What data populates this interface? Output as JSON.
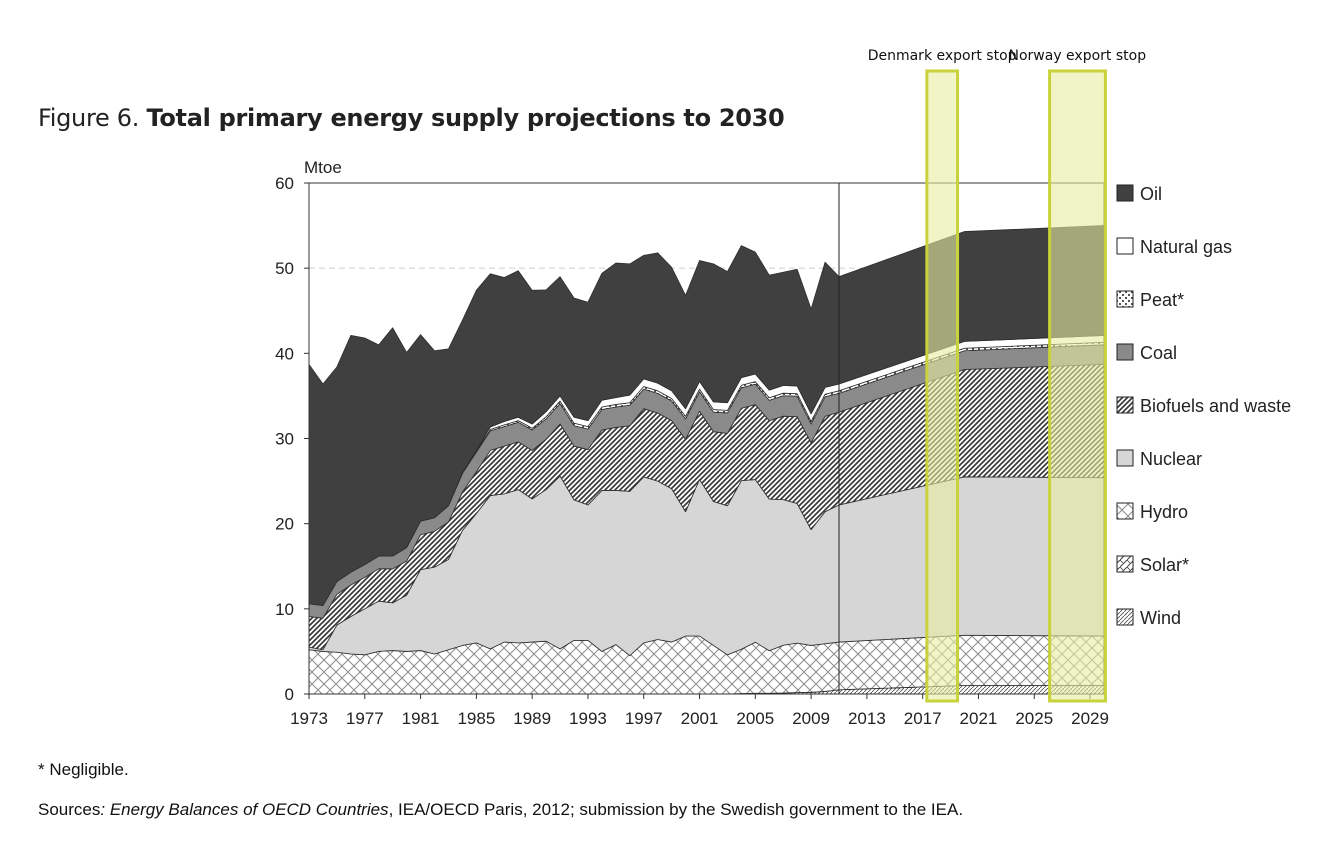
{
  "figure": {
    "label": "Figure 6.",
    "title": "Total primary energy supply projections to 2030"
  },
  "footnote": "* Negligible.",
  "sources": {
    "prefix": "Sources",
    "italic": ": Energy Balances of OECD Countries",
    "rest": ", IEA/OECD Paris, 2012; submission by the Swedish government to the IEA."
  },
  "annotations": [
    {
      "label": "Denmark export stop",
      "x_start": 2017.3,
      "x_end": 2019.5,
      "color": "#e8ee9e",
      "border": "#c8d23a"
    },
    {
      "label": "Norway export stop",
      "x_start": 2026.1,
      "x_end": 2030.1,
      "color": "#e8ee9e",
      "border": "#c8d23a"
    }
  ],
  "chart_data": {
    "type": "area",
    "stacked": true,
    "ylabel": "Mtoe",
    "ylim": [
      0,
      60
    ],
    "yticks": [
      0,
      10,
      20,
      30,
      40,
      50,
      60
    ],
    "xlim": [
      1973,
      2030
    ],
    "xticks": [
      1973,
      1977,
      1981,
      1985,
      1989,
      1993,
      1997,
      2001,
      2005,
      2009,
      2013,
      2017,
      2021,
      2025,
      2029
    ],
    "projection_start": 2011,
    "grid": "dashed at 50",
    "legend_position": "right",
    "x": [
      1973,
      1974,
      1975,
      1976,
      1977,
      1978,
      1979,
      1980,
      1981,
      1982,
      1983,
      1984,
      1985,
      1986,
      1987,
      1988,
      1989,
      1990,
      1991,
      1992,
      1993,
      1994,
      1995,
      1996,
      1997,
      1998,
      1999,
      2000,
      2001,
      2002,
      2003,
      2004,
      2005,
      2006,
      2007,
      2008,
      2009,
      2010,
      2011,
      2020,
      2030
    ],
    "series": [
      {
        "name": "Wind",
        "fill": "wind",
        "values": [
          0,
          0,
          0,
          0,
          0,
          0,
          0,
          0,
          0,
          0,
          0,
          0,
          0,
          0,
          0,
          0,
          0,
          0,
          0,
          0,
          0,
          0,
          0,
          0,
          0,
          0,
          0,
          0,
          0,
          0,
          0,
          0.05,
          0.08,
          0.08,
          0.12,
          0.17,
          0.2,
          0.3,
          0.5,
          1.0,
          1.0
        ]
      },
      {
        "name": "Solar*",
        "fill": "solar",
        "values": [
          0,
          0,
          0,
          0,
          0,
          0,
          0,
          0,
          0,
          0,
          0,
          0,
          0,
          0,
          0,
          0,
          0,
          0,
          0,
          0,
          0,
          0,
          0,
          0,
          0,
          0,
          0,
          0,
          0,
          0,
          0,
          0,
          0,
          0,
          0,
          0,
          0,
          0,
          0,
          0,
          0
        ]
      },
      {
        "name": "Hydro",
        "fill": "hydro",
        "values": [
          5.2,
          5.0,
          4.9,
          4.7,
          4.6,
          5.0,
          5.1,
          5.0,
          5.1,
          4.7,
          5.2,
          5.7,
          6.0,
          5.3,
          6.1,
          6.0,
          6.1,
          6.2,
          5.3,
          6.3,
          6.3,
          5.0,
          5.8,
          4.5,
          6.0,
          6.4,
          6.1,
          6.8,
          6.8,
          5.7,
          4.6,
          5.2,
          6.0,
          5.0,
          5.6,
          5.8,
          5.5,
          5.6,
          5.6,
          5.9,
          5.8
        ]
      },
      {
        "name": "Nuclear",
        "fill": "#d6d6d6",
        "values": [
          0.3,
          0.2,
          3.2,
          4.4,
          5.4,
          5.9,
          5.6,
          6.6,
          9.5,
          10.2,
          10.6,
          13.5,
          15.2,
          18.0,
          17.4,
          18.0,
          16.8,
          17.8,
          20.3,
          16.5,
          15.9,
          18.9,
          18.1,
          19.3,
          19.5,
          18.6,
          18.0,
          14.6,
          18.4,
          16.9,
          17.5,
          19.8,
          19.1,
          17.8,
          17.1,
          16.4,
          13.6,
          15.5,
          16.1,
          18.6,
          18.6
        ]
      },
      {
        "name": "Biofuels and waste",
        "fill": "biofuels",
        "values": [
          3.6,
          3.7,
          3.6,
          3.7,
          3.7,
          3.8,
          4.0,
          4.0,
          4.1,
          4.2,
          4.4,
          4.5,
          4.9,
          5.3,
          5.6,
          5.6,
          5.7,
          5.9,
          6.1,
          6.3,
          6.5,
          7.1,
          7.4,
          7.7,
          8.0,
          8.0,
          8.0,
          8.5,
          8.0,
          8.2,
          8.5,
          8.5,
          8.8,
          9.2,
          9.8,
          10.2,
          10.2,
          11.2,
          10.9,
          12.6,
          13.3
        ]
      },
      {
        "name": "Coal",
        "fill": "#8a8a8a",
        "values": [
          1.5,
          1.5,
          1.5,
          1.5,
          1.5,
          1.5,
          1.5,
          1.6,
          1.6,
          1.6,
          1.9,
          2.2,
          2.3,
          2.3,
          2.3,
          2.3,
          2.4,
          2.4,
          2.4,
          2.4,
          2.4,
          2.4,
          2.4,
          2.4,
          2.3,
          2.3,
          2.3,
          2.4,
          2.3,
          2.3,
          2.4,
          2.4,
          2.4,
          2.4,
          2.4,
          2.4,
          2.2,
          2.3,
          2.2,
          2.2,
          2.3
        ]
      },
      {
        "name": "Peat*",
        "fill": "peat",
        "values": [
          0,
          0,
          0,
          0,
          0,
          0,
          0,
          0,
          0,
          0,
          0.02,
          0.1,
          0.1,
          0.15,
          0.2,
          0.2,
          0.2,
          0.25,
          0.3,
          0.3,
          0.3,
          0.3,
          0.3,
          0.3,
          0.3,
          0.3,
          0.3,
          0.3,
          0.3,
          0.3,
          0.3,
          0.3,
          0.3,
          0.3,
          0.3,
          0.3,
          0.3,
          0.3,
          0.3,
          0.3,
          0.3
        ]
      },
      {
        "name": "Natural gas",
        "fill": "#ffffff",
        "values": [
          0,
          0,
          0,
          0,
          0,
          0,
          0,
          0,
          0,
          0,
          0,
          0,
          0.1,
          0.3,
          0.4,
          0.4,
          0.5,
          0.6,
          0.6,
          0.7,
          0.7,
          0.8,
          0.8,
          0.9,
          0.9,
          0.9,
          0.9,
          0.9,
          0.9,
          0.9,
          0.9,
          0.9,
          0.9,
          0.9,
          0.9,
          0.9,
          0.9,
          0.8,
          0.8,
          0.8,
          0.8
        ]
      },
      {
        "name": "Oil",
        "fill": "#404040",
        "values": [
          28.1,
          26.0,
          25.2,
          27.8,
          26.6,
          24.8,
          26.8,
          22.9,
          21.9,
          19.6,
          18.4,
          17.9,
          18.8,
          18.0,
          16.9,
          17.2,
          15.7,
          14.3,
          14.0,
          14.0,
          13.9,
          14.9,
          15.8,
          15.4,
          14.5,
          15.3,
          14.5,
          13.3,
          14.2,
          16.2,
          15.4,
          15.5,
          14.3,
          13.5,
          13.3,
          13.7,
          12.3,
          14.7,
          12.6,
          12.9,
          12.9
        ]
      }
    ]
  }
}
